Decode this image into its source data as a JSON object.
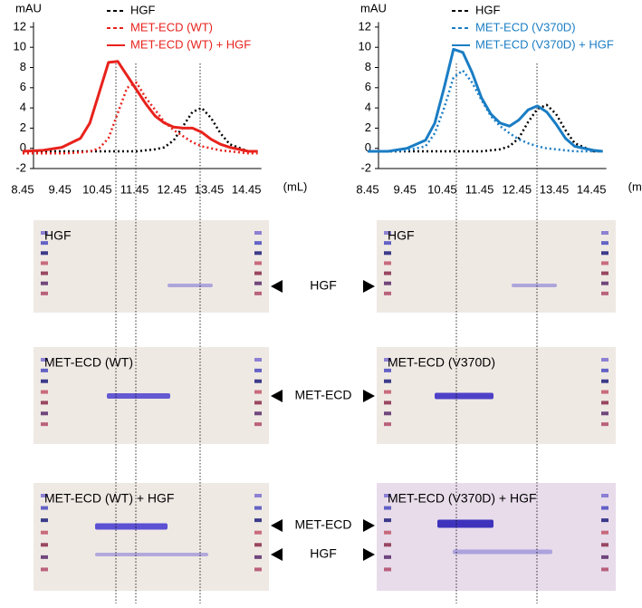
{
  "chart_data": [
    {
      "type": "line",
      "y_label": "mAU",
      "x_label": "(mL)",
      "x": [
        8.45,
        9,
        9.5,
        10,
        10.25,
        10.5,
        10.75,
        11,
        11.25,
        11.5,
        11.75,
        12,
        12.25,
        12.5,
        12.75,
        13,
        13.25,
        13.5,
        13.75,
        14,
        14.5,
        14.75
      ],
      "series": [
        {
          "name": "HGF",
          "color": "#000000",
          "line_style": "dotted",
          "legend_style": "dashed",
          "values": [
            -0.3,
            -0.3,
            -0.3,
            -0.3,
            -0.3,
            -0.3,
            -0.3,
            -0.3,
            -0.3,
            -0.3,
            -0.2,
            -0.1,
            0.1,
            0.8,
            2.2,
            3.6,
            4.0,
            3.0,
            1.5,
            0.4,
            -0.3,
            -0.3
          ]
        },
        {
          "name": "MET-ECD (WT)",
          "color": "#e8221c",
          "line_style": "dotted",
          "legend_style": "dashed",
          "values": [
            -0.5,
            -0.5,
            -0.5,
            -0.4,
            -0.3,
            0,
            1,
            3.5,
            6,
            6.5,
            5,
            3.8,
            2.6,
            1.8,
            1.2,
            0.6,
            0.2,
            0,
            -0.2,
            -0.3,
            -0.5,
            -0.5
          ]
        },
        {
          "name": "MET-ECD (WT) + HGF",
          "color": "#e8221c",
          "line_style": "solid",
          "legend_style": "solid",
          "values": [
            -0.3,
            -0.2,
            0.1,
            1,
            2.5,
            5.5,
            8.5,
            8.6,
            7.2,
            5.8,
            4.4,
            3.2,
            2.5,
            2.1,
            2.0,
            2.0,
            1.6,
            0.9,
            0.4,
            0.1,
            -0.3,
            -0.3
          ]
        }
      ],
      "xlim": [
        8.45,
        14.85
      ],
      "xticks": [
        8.45,
        9.45,
        10.45,
        11.45,
        12.45,
        13.45,
        14.45
      ],
      "ylim": [
        -2,
        12.5
      ],
      "yticks": [
        -2,
        0,
        2,
        4,
        6,
        8,
        10,
        12
      ]
    },
    {
      "type": "line",
      "y_label": "mAU",
      "x_label": "(mL)",
      "x": [
        8.45,
        9,
        9.5,
        10,
        10.25,
        10.5,
        10.75,
        11,
        11.25,
        11.5,
        11.75,
        12,
        12.25,
        12.5,
        12.75,
        13,
        13.25,
        13.5,
        13.75,
        14,
        14.5,
        14.75
      ],
      "series": [
        {
          "name": "HGF",
          "color": "#000000",
          "line_style": "dotted",
          "legend_style": "dashed",
          "values": [
            -0.3,
            -0.3,
            -0.3,
            -0.3,
            -0.3,
            -0.3,
            -0.3,
            -0.3,
            -0.3,
            -0.3,
            -0.2,
            -0.1,
            0.2,
            1.0,
            2.6,
            3.9,
            4.3,
            3.4,
            1.8,
            0.5,
            -0.3,
            -0.3
          ]
        },
        {
          "name": "MET-ECD (V370D)",
          "color": "#1a7dc4",
          "line_style": "dotted",
          "legend_style": "dashed",
          "values": [
            -0.3,
            -0.3,
            -0.2,
            0.2,
            1.5,
            4,
            7,
            7.7,
            6.5,
            4.8,
            3.2,
            2.2,
            1.5,
            0.9,
            0.5,
            0.2,
            0,
            -0.1,
            -0.2,
            -0.3,
            -0.3,
            -0.3
          ]
        },
        {
          "name": "MET-ECD (V370D) + HGF",
          "color": "#1a7dc4",
          "line_style": "solid",
          "legend_style": "solid",
          "values": [
            -0.3,
            -0.3,
            0,
            0.8,
            2.5,
            6,
            9.8,
            9.5,
            7.5,
            5.0,
            3.4,
            2.5,
            2.2,
            2.8,
            3.8,
            4.2,
            3.6,
            2.4,
            1.0,
            0.2,
            -0.2,
            -0.3
          ]
        }
      ],
      "xlim": [
        8.45,
        14.85
      ],
      "xticks": [
        8.45,
        9.45,
        10.45,
        11.45,
        12.45,
        13.45,
        14.45
      ],
      "ylim": [
        -2,
        12.5
      ],
      "yticks": [
        -2,
        0,
        2,
        4,
        6,
        8,
        10,
        12
      ]
    }
  ],
  "gels": {
    "left": [
      "HGF",
      "MET-ECD (WT)",
      "MET-ECD (WT) + HGF"
    ],
    "right": [
      "HGF",
      "MET-ECD (V370D)",
      "MET-ECD (V370D) + HGF"
    ],
    "markers": [
      "HGF",
      "MET-ECD",
      "MET-ECD",
      "HGF"
    ]
  }
}
